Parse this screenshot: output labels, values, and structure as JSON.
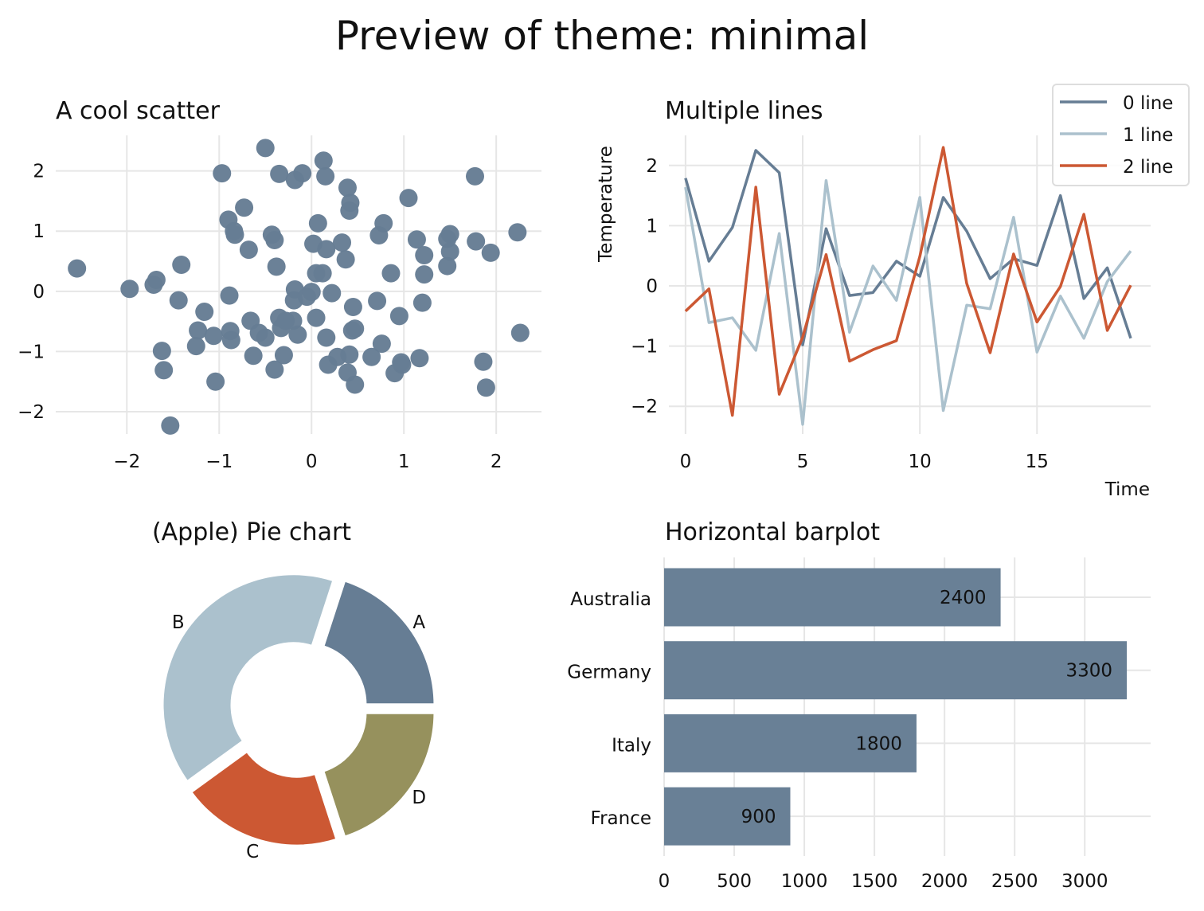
{
  "title": "Preview of theme: minimal",
  "colors": {
    "c0": "#667d94",
    "c1": "#abc1cd",
    "c2": "#cc5833",
    "c3": "#96915d"
  },
  "chart_data": [
    {
      "type": "scatter",
      "title": "A cool scatter",
      "xlabel": "",
      "ylabel": "",
      "xlim": [
        -2.77,
        2.49
      ],
      "ylim": [
        -2.37,
        2.59
      ],
      "xticks": [
        -2,
        -1,
        0,
        1,
        2
      ],
      "xtick_labels": [
        "−2",
        "−1",
        "0",
        "1",
        "2"
      ],
      "yticks": [
        -2,
        -1,
        0,
        1,
        2
      ],
      "ytick_labels": [
        "−2",
        "−1",
        "0",
        "1",
        "2"
      ],
      "grid": true,
      "points": [
        [
          -2.54,
          0.38
        ],
        [
          -1.97,
          0.04
        ],
        [
          -1.71,
          0.11
        ],
        [
          -1.68,
          0.19
        ],
        [
          -1.41,
          0.44
        ],
        [
          -1.44,
          -0.15
        ],
        [
          -1.62,
          -0.99
        ],
        [
          -1.6,
          -1.31
        ],
        [
          -1.53,
          -2.23
        ],
        [
          -1.16,
          -0.34
        ],
        [
          -1.23,
          -0.65
        ],
        [
          -1.25,
          -0.91
        ],
        [
          -1.06,
          -0.74
        ],
        [
          -1.04,
          -1.5
        ],
        [
          -0.97,
          1.96
        ],
        [
          -0.9,
          1.19
        ],
        [
          -0.83,
          0.94
        ],
        [
          -0.84,
          1.0
        ],
        [
          -0.73,
          1.39
        ],
        [
          -0.68,
          0.69
        ],
        [
          -0.89,
          -0.07
        ],
        [
          -0.88,
          -0.66
        ],
        [
          -0.87,
          -0.81
        ],
        [
          -0.66,
          -0.49
        ],
        [
          -0.63,
          -1.07
        ],
        [
          -0.57,
          -0.69
        ],
        [
          -0.5,
          -0.77
        ],
        [
          -0.5,
          2.38
        ],
        [
          -0.35,
          1.95
        ],
        [
          -0.1,
          1.96
        ],
        [
          -0.18,
          1.85
        ],
        [
          -0.43,
          0.94
        ],
        [
          -0.4,
          0.85
        ],
        [
          -0.38,
          0.41
        ],
        [
          -0.35,
          -0.44
        ],
        [
          -0.33,
          -0.61
        ],
        [
          -0.28,
          -0.49
        ],
        [
          -0.4,
          -1.3
        ],
        [
          -0.3,
          -1.06
        ],
        [
          -0.2,
          -0.49
        ],
        [
          -0.15,
          -0.72
        ],
        [
          -0.18,
          0.03
        ],
        [
          -0.19,
          -0.15
        ],
        [
          -0.05,
          -0.09
        ],
        [
          0.0,
          -0.01
        ],
        [
          0.13,
          2.17
        ],
        [
          0.15,
          1.91
        ],
        [
          0.39,
          1.72
        ],
        [
          0.42,
          1.47
        ],
        [
          0.41,
          1.34
        ],
        [
          0.02,
          0.79
        ],
        [
          0.07,
          1.13
        ],
        [
          0.16,
          0.7
        ],
        [
          0.33,
          0.81
        ],
        [
          0.37,
          0.53
        ],
        [
          0.05,
          0.3
        ],
        [
          0.12,
          0.3
        ],
        [
          0.22,
          -0.03
        ],
        [
          0.05,
          -0.44
        ],
        [
          0.16,
          -0.77
        ],
        [
          0.45,
          -0.26
        ],
        [
          0.44,
          -0.65
        ],
        [
          0.47,
          -0.62
        ],
        [
          0.18,
          -1.22
        ],
        [
          0.28,
          -1.09
        ],
        [
          0.41,
          -1.05
        ],
        [
          0.39,
          -1.35
        ],
        [
          0.47,
          -1.55
        ],
        [
          0.73,
          0.93
        ],
        [
          0.78,
          1.13
        ],
        [
          0.86,
          0.3
        ],
        [
          0.71,
          -0.16
        ],
        [
          0.95,
          -0.41
        ],
        [
          0.76,
          -0.87
        ],
        [
          0.65,
          -1.09
        ],
        [
          0.9,
          -1.36
        ],
        [
          0.98,
          -1.22
        ],
        [
          0.97,
          -1.18
        ],
        [
          1.17,
          -1.11
        ],
        [
          1.05,
          1.55
        ],
        [
          1.14,
          0.86
        ],
        [
          1.22,
          0.6
        ],
        [
          1.22,
          0.28
        ],
        [
          1.2,
          -0.19
        ],
        [
          1.47,
          0.87
        ],
        [
          1.5,
          0.95
        ],
        [
          1.5,
          0.66
        ],
        [
          1.47,
          0.42
        ],
        [
          1.77,
          1.91
        ],
        [
          1.78,
          0.83
        ],
        [
          1.94,
          0.64
        ],
        [
          1.86,
          -1.17
        ],
        [
          1.89,
          -1.6
        ],
        [
          2.23,
          0.98
        ],
        [
          2.26,
          -0.69
        ]
      ]
    },
    {
      "type": "line",
      "title": "Multiple lines",
      "xlabel": "Time",
      "ylabel": "Temperature",
      "xlim": [
        -0.71,
        19.85
      ],
      "ylim": [
        -2.46,
        2.5
      ],
      "xticks": [
        0,
        5,
        10,
        15
      ],
      "xtick_labels": [
        "0",
        "5",
        "10",
        "15"
      ],
      "yticks": [
        -2,
        -1,
        0,
        1,
        2
      ],
      "ytick_labels": [
        "−2",
        "−1",
        "0",
        "1",
        "2"
      ],
      "grid": true,
      "legend": "top-right",
      "x": [
        0,
        1,
        2,
        3,
        4,
        5,
        6,
        7,
        8,
        9,
        10,
        11,
        12,
        13,
        14,
        15,
        16,
        17,
        18,
        19
      ],
      "series": [
        {
          "name": "0 line",
          "values": [
            1.79,
            0.41,
            0.97,
            2.25,
            1.88,
            -0.98,
            0.95,
            -0.16,
            -0.11,
            0.41,
            0.16,
            1.47,
            0.91,
            0.12,
            0.45,
            0.34,
            1.5,
            -0.21,
            0.3,
            -0.87
          ]
        },
        {
          "name": "1 line",
          "values": [
            1.64,
            -0.61,
            -0.53,
            -1.07,
            0.87,
            -2.3,
            1.75,
            -0.77,
            0.33,
            -0.24,
            1.47,
            -2.07,
            -0.32,
            -0.38,
            1.14,
            -1.1,
            -0.17,
            -0.87,
            0.07,
            0.58
          ]
        },
        {
          "name": "2 line",
          "values": [
            -0.42,
            -0.05,
            -2.15,
            1.64,
            -1.8,
            -0.85,
            0.52,
            -1.25,
            -1.06,
            -0.91,
            0.49,
            2.3,
            0.04,
            -1.11,
            0.53,
            -0.6,
            -0.01,
            1.19,
            -0.74,
            0.01
          ]
        }
      ]
    },
    {
      "type": "pie",
      "title": "(Apple) Pie chart",
      "labels": [
        "A",
        "B",
        "C",
        "D"
      ],
      "values": [
        20,
        40,
        20,
        20
      ],
      "donut": true
    },
    {
      "type": "bar",
      "orientation": "horizontal",
      "title": "Horizontal barplot",
      "categories": [
        "Australia",
        "Germany",
        "Italy",
        "France"
      ],
      "values": [
        2400,
        3300,
        1800,
        900
      ],
      "data_labels": [
        "2400",
        "3300",
        "1800",
        "900"
      ],
      "xlim": [
        0,
        3470
      ],
      "xticks": [
        0,
        500,
        1000,
        1500,
        2000,
        2500,
        3000
      ],
      "xtick_labels": [
        "0",
        "500",
        "1000",
        "1500",
        "2000",
        "2500",
        "3000"
      ],
      "grid": true
    }
  ]
}
